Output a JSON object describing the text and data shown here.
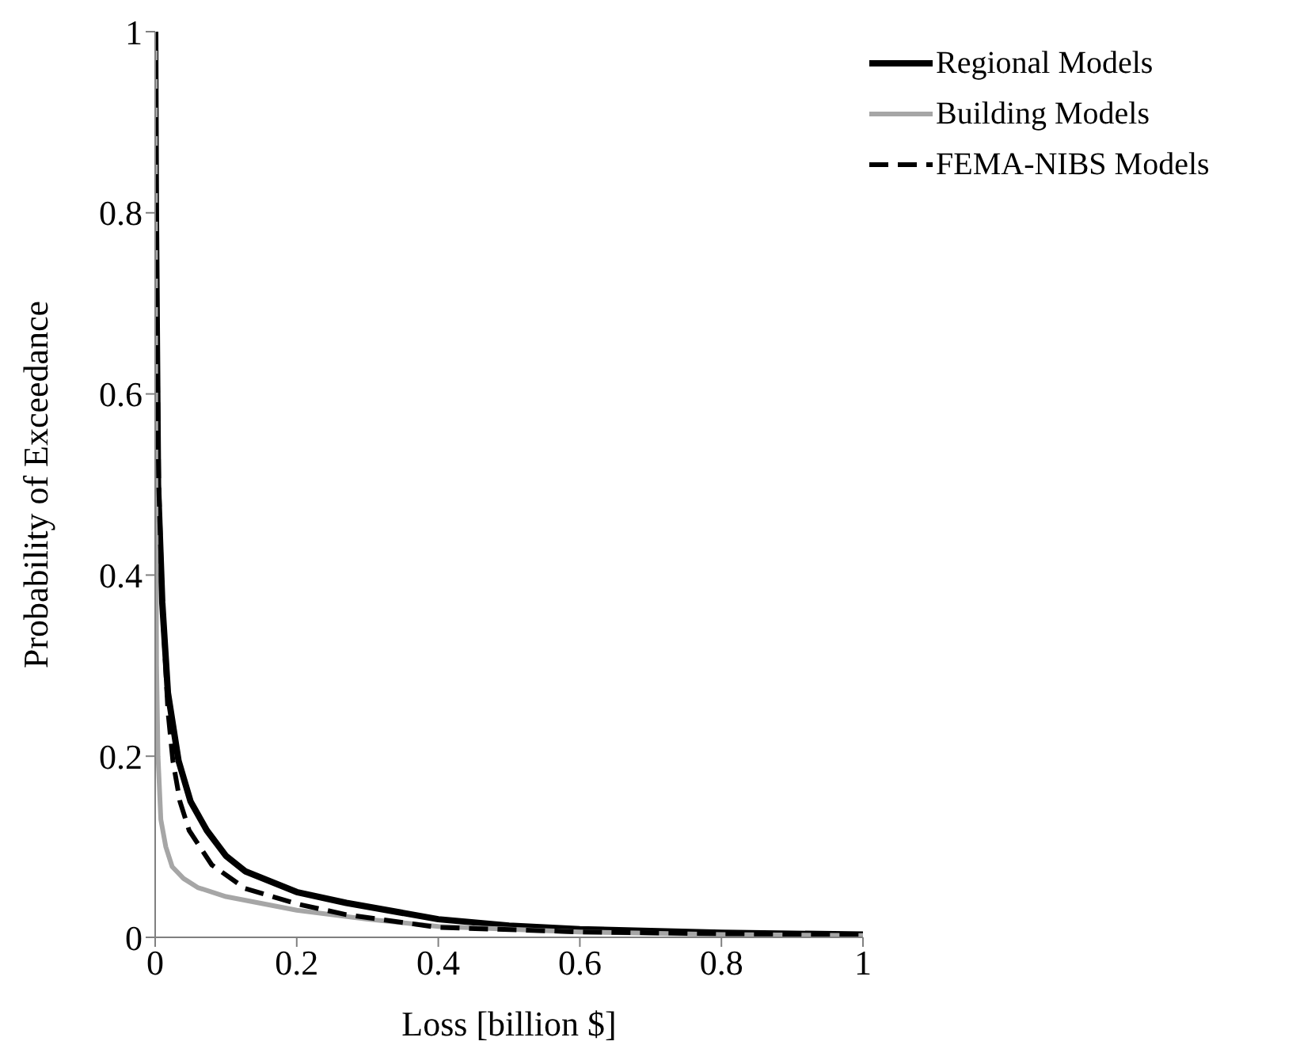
{
  "chart_data": {
    "type": "line",
    "xlabel": "Loss [billion $]",
    "ylabel": "Probability of Exceedance",
    "xlim": [
      0,
      1
    ],
    "xticks": [
      0,
      0.2,
      0.4,
      0.6,
      0.8,
      1
    ],
    "ylim": [
      0,
      1
    ],
    "yticks": [
      0,
      0.2,
      0.4,
      0.6,
      0.8,
      1
    ],
    "grid": false,
    "legend": "top right",
    "marker": "none",
    "series": [
      {
        "name": "Regional Models",
        "color": "#000000",
        "line_style": "solid",
        "x": [
          0,
          0.001,
          0.004,
          0.01,
          0.018,
          0.033,
          0.05,
          0.073,
          0.1,
          0.127,
          0.2,
          0.27,
          0.4,
          0.5,
          0.6,
          0.8,
          1
        ],
        "values": [
          1,
          0.8,
          0.5,
          0.37,
          0.27,
          0.195,
          0.15,
          0.118,
          0.09,
          0.073,
          0.05,
          0.038,
          0.02,
          0.013,
          0.009,
          0.005,
          0.003
        ]
      },
      {
        "name": "Building Models",
        "color": "#a6a6a6",
        "line_style": "solid",
        "x": [
          0,
          0.001,
          0.002,
          0.004,
          0.008,
          0.015,
          0.024,
          0.04,
          0.06,
          0.1,
          0.2,
          0.3,
          0.4,
          0.6,
          0.8,
          1
        ],
        "values": [
          1,
          0.5,
          0.3,
          0.2,
          0.13,
          0.1,
          0.078,
          0.065,
          0.055,
          0.045,
          0.03,
          0.02,
          0.012,
          0.006,
          0.003,
          0.002
        ]
      },
      {
        "name": "FEMA-NIBS Models",
        "color": "#000000",
        "line_style": "dashed",
        "x": [
          0,
          0.002,
          0.005,
          0.01,
          0.018,
          0.025,
          0.035,
          0.048,
          0.08,
          0.127,
          0.2,
          0.27,
          0.4,
          0.6,
          0.8,
          1
        ],
        "values": [
          1,
          0.7,
          0.5,
          0.37,
          0.25,
          0.195,
          0.15,
          0.118,
          0.08,
          0.054,
          0.037,
          0.025,
          0.011,
          0.006,
          0.004,
          0.003
        ]
      }
    ]
  }
}
